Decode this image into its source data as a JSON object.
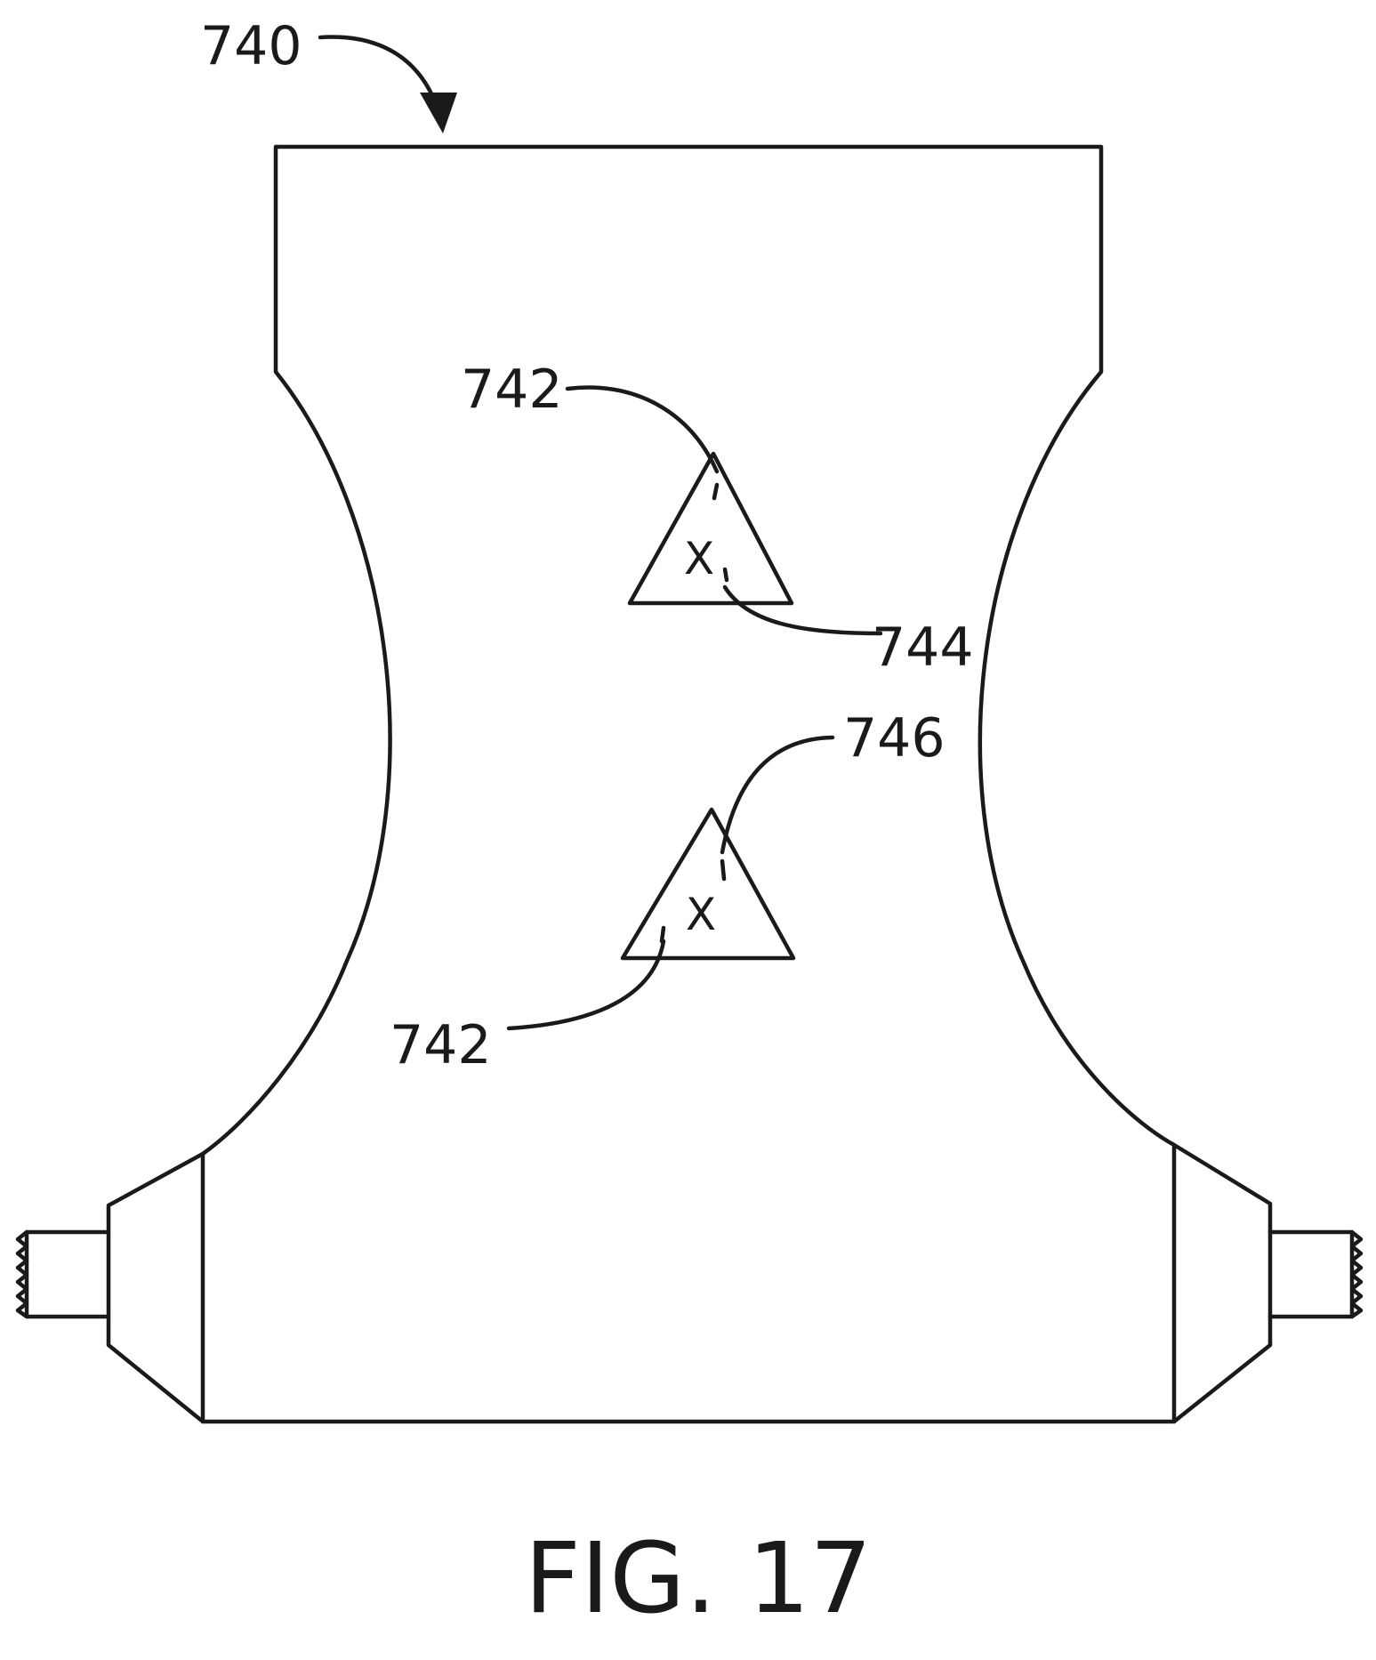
{
  "figure": {
    "caption": "FIG. 17",
    "labels": {
      "ref_740": "740",
      "ref_742_top": "742",
      "ref_744": "744",
      "ref_746": "746",
      "ref_742_bottom": "742"
    },
    "markers": {
      "upper": "X",
      "lower": "X"
    }
  }
}
